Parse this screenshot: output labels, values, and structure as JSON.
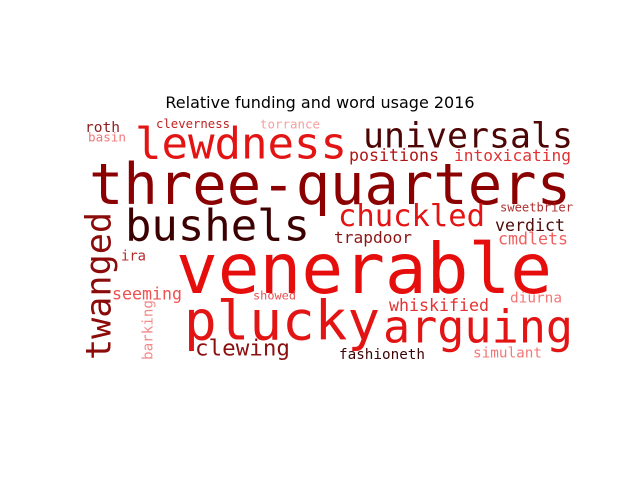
{
  "chart_data": {
    "type": "wordcloud",
    "title": "Relative funding and word usage 2016",
    "colormap": "reds",
    "words": [
      {
        "text": "venerable",
        "weight": 100,
        "color": "#e60d0d",
        "orientation": "horizontal"
      },
      {
        "text": "three-quarters",
        "weight": 76,
        "color": "#8b0000",
        "orientation": "horizontal"
      },
      {
        "text": "plucky",
        "weight": 64,
        "color": "#e31414",
        "orientation": "horizontal"
      },
      {
        "text": "arguing",
        "weight": 52,
        "color": "#e31414",
        "orientation": "horizontal"
      },
      {
        "text": "lewdness",
        "weight": 50,
        "color": "#e31414",
        "orientation": "horizontal"
      },
      {
        "text": "bushels",
        "weight": 50,
        "color": "#3d0000",
        "orientation": "horizontal"
      },
      {
        "text": "universals",
        "weight": 42,
        "color": "#4d0505",
        "orientation": "horizontal"
      },
      {
        "text": "twanged",
        "weight": 40,
        "color": "#8b0b0b",
        "orientation": "vertical"
      },
      {
        "text": "chuckled",
        "weight": 32,
        "color": "#e31414",
        "orientation": "horizontal"
      },
      {
        "text": "clewing",
        "weight": 26,
        "color": "#8b1010",
        "orientation": "horizontal"
      },
      {
        "text": "positions",
        "weight": 20,
        "color": "#b01515",
        "orientation": "horizontal"
      },
      {
        "text": "intoxicating",
        "weight": 20,
        "color": "#e03232",
        "orientation": "horizontal"
      },
      {
        "text": "verdict",
        "weight": 20,
        "color": "#4d0a0a",
        "orientation": "horizontal"
      },
      {
        "text": "trapdoor",
        "weight": 20,
        "color": "#8b1515",
        "orientation": "horizontal"
      },
      {
        "text": "whiskified",
        "weight": 20,
        "color": "#e63232",
        "orientation": "horizontal"
      },
      {
        "text": "seeming",
        "weight": 20,
        "color": "#f05050",
        "orientation": "horizontal"
      },
      {
        "text": "cmdlets",
        "weight": 18,
        "color": "#f06060",
        "orientation": "horizontal"
      },
      {
        "text": "fashioneth",
        "weight": 16,
        "color": "#3d0505",
        "orientation": "horizontal"
      },
      {
        "text": "roth",
        "weight": 16,
        "color": "#8b2020",
        "orientation": "horizontal"
      },
      {
        "text": "diurna",
        "weight": 14,
        "color": "#f27878",
        "orientation": "horizontal"
      },
      {
        "text": "simulant",
        "weight": 14,
        "color": "#f27878",
        "orientation": "horizontal"
      },
      {
        "text": "ira",
        "weight": 12,
        "color": "#b52a2a",
        "orientation": "horizontal"
      },
      {
        "text": "barking",
        "weight": 12,
        "color": "#f08a8a",
        "orientation": "vertical"
      },
      {
        "text": "cleverness",
        "weight": 12,
        "color": "#c02222",
        "orientation": "horizontal"
      },
      {
        "text": "torrance",
        "weight": 12,
        "color": "#f4a0a0",
        "orientation": "horizontal"
      },
      {
        "text": "sweetbrier",
        "weight": 12,
        "color": "#b03030",
        "orientation": "horizontal"
      },
      {
        "text": "showed",
        "weight": 11,
        "color": "#e85050",
        "orientation": "horizontal"
      },
      {
        "text": "basin",
        "weight": 10,
        "color": "#f27878",
        "orientation": "horizontal"
      }
    ]
  }
}
